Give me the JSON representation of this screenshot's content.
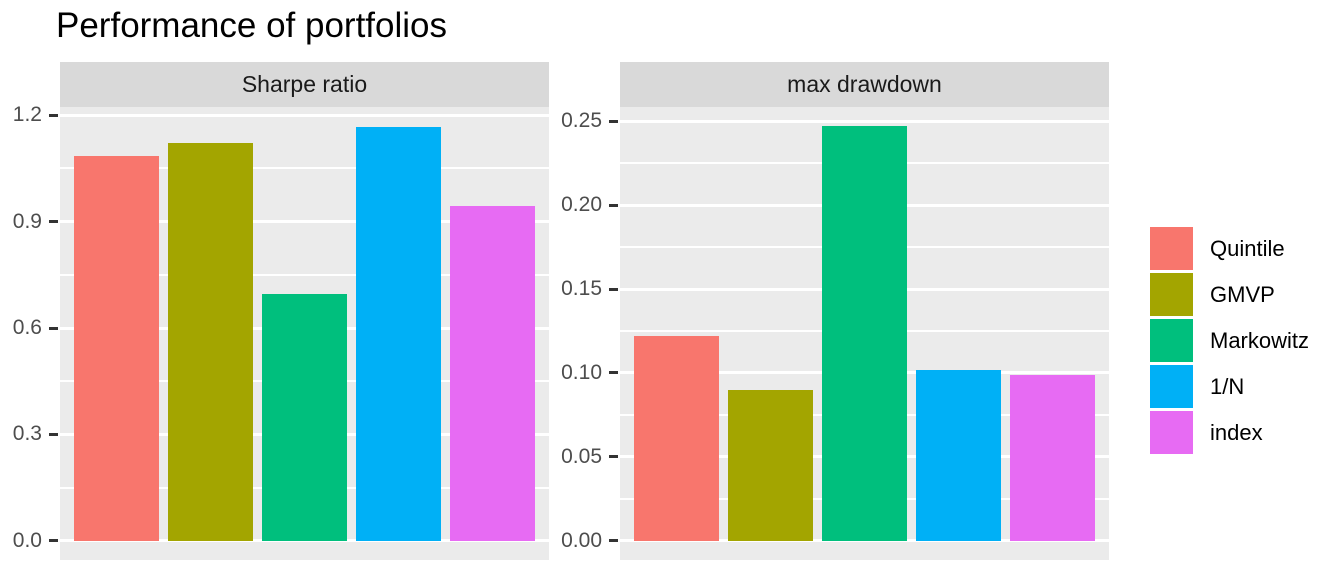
{
  "title": "Performance of portfolios",
  "theme_colors": {
    "panel_bg": "#EBEBEB",
    "strip_bg": "#D9D9D9",
    "gridline": "#FFFFFF",
    "axis_text": "#4D4D4D",
    "tick_mark": "#333333",
    "title_text": "#000000",
    "strip_text": "#1A1A1A",
    "page_bg": "#FFFFFF"
  },
  "legend": {
    "items": [
      {
        "label": "Quintile",
        "color": "#F8766D"
      },
      {
        "label": "GMVP",
        "color": "#A3A500"
      },
      {
        "label": "Markowitz",
        "color": "#00BF7D"
      },
      {
        "label": "1/N",
        "color": "#00B0F6"
      },
      {
        "label": "index",
        "color": "#E76BF3"
      }
    ]
  },
  "chart_data": {
    "type": "bar",
    "title": "Performance of portfolios",
    "categories": [
      "Quintile",
      "GMVP",
      "Markowitz",
      "1/N",
      "index"
    ],
    "series_colors": [
      "#F8766D",
      "#A3A500",
      "#00BF7D",
      "#00B0F6",
      "#E76BF3"
    ],
    "grid": true,
    "legend_position": "right",
    "x_axis_labels": false,
    "facets": [
      {
        "label": "Sharpe ratio",
        "values": [
          1.086,
          1.121,
          0.695,
          1.166,
          0.944
        ],
        "tick_labels": [
          "0.0",
          "0.3",
          "0.6",
          "0.9",
          "1.2"
        ],
        "tick_values": [
          0,
          0.3,
          0.6,
          0.9,
          1.2
        ],
        "minor_ticks": [
          0.15,
          0.45,
          0.75,
          1.05
        ],
        "ylim": [
          -0.054,
          1.223
        ]
      },
      {
        "label": "max drawdown",
        "values": [
          0.122,
          0.09,
          0.247,
          0.102,
          0.099
        ],
        "tick_labels": [
          "0.00",
          "0.05",
          "0.10",
          "0.15",
          "0.20",
          "0.25"
        ],
        "tick_values": [
          0,
          0.05,
          0.1,
          0.15,
          0.2,
          0.25
        ],
        "minor_ticks": [
          0.025,
          0.075,
          0.125,
          0.175,
          0.225
        ],
        "ylim": [
          -0.0115,
          0.2586
        ]
      }
    ]
  }
}
